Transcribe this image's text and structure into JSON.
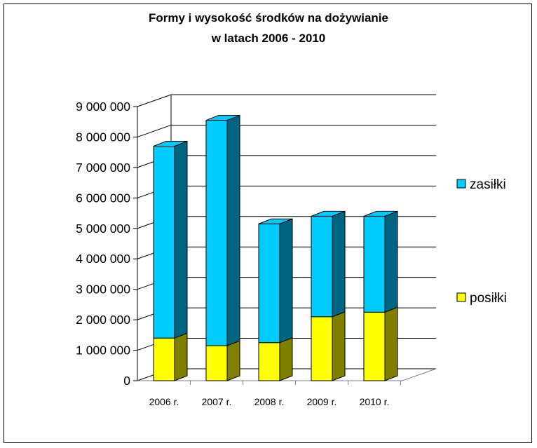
{
  "chart_data": {
    "type": "bar",
    "stacked": true,
    "three_d": true,
    "title_lines": [
      "Formy i wysokość środków na dożywianie",
      "w latach 2006 - 2010"
    ],
    "categories": [
      "2006 r.",
      "2007 r.",
      "2008 r.",
      "2009 r.",
      "2010 r."
    ],
    "series": [
      {
        "name": "posiłki",
        "values": [
          1400000,
          1150000,
          1250000,
          2100000,
          2250000
        ],
        "color": "#ffff00",
        "side_color": "#808000"
      },
      {
        "name": "zasiłki",
        "values": [
          6300000,
          7400000,
          3900000,
          3300000,
          3150000
        ],
        "color": "#00ccff",
        "side_color": "#006580"
      }
    ],
    "ylim": [
      0,
      9000000
    ],
    "yticks": [
      "0",
      "1 000 000",
      "2 000 000",
      "3 000 000",
      "4 000 000",
      "5 000 000",
      "6 000 000",
      "7 000 000",
      "8 000 000",
      "9 000 000"
    ],
    "grid": true,
    "legend_position": "right"
  }
}
